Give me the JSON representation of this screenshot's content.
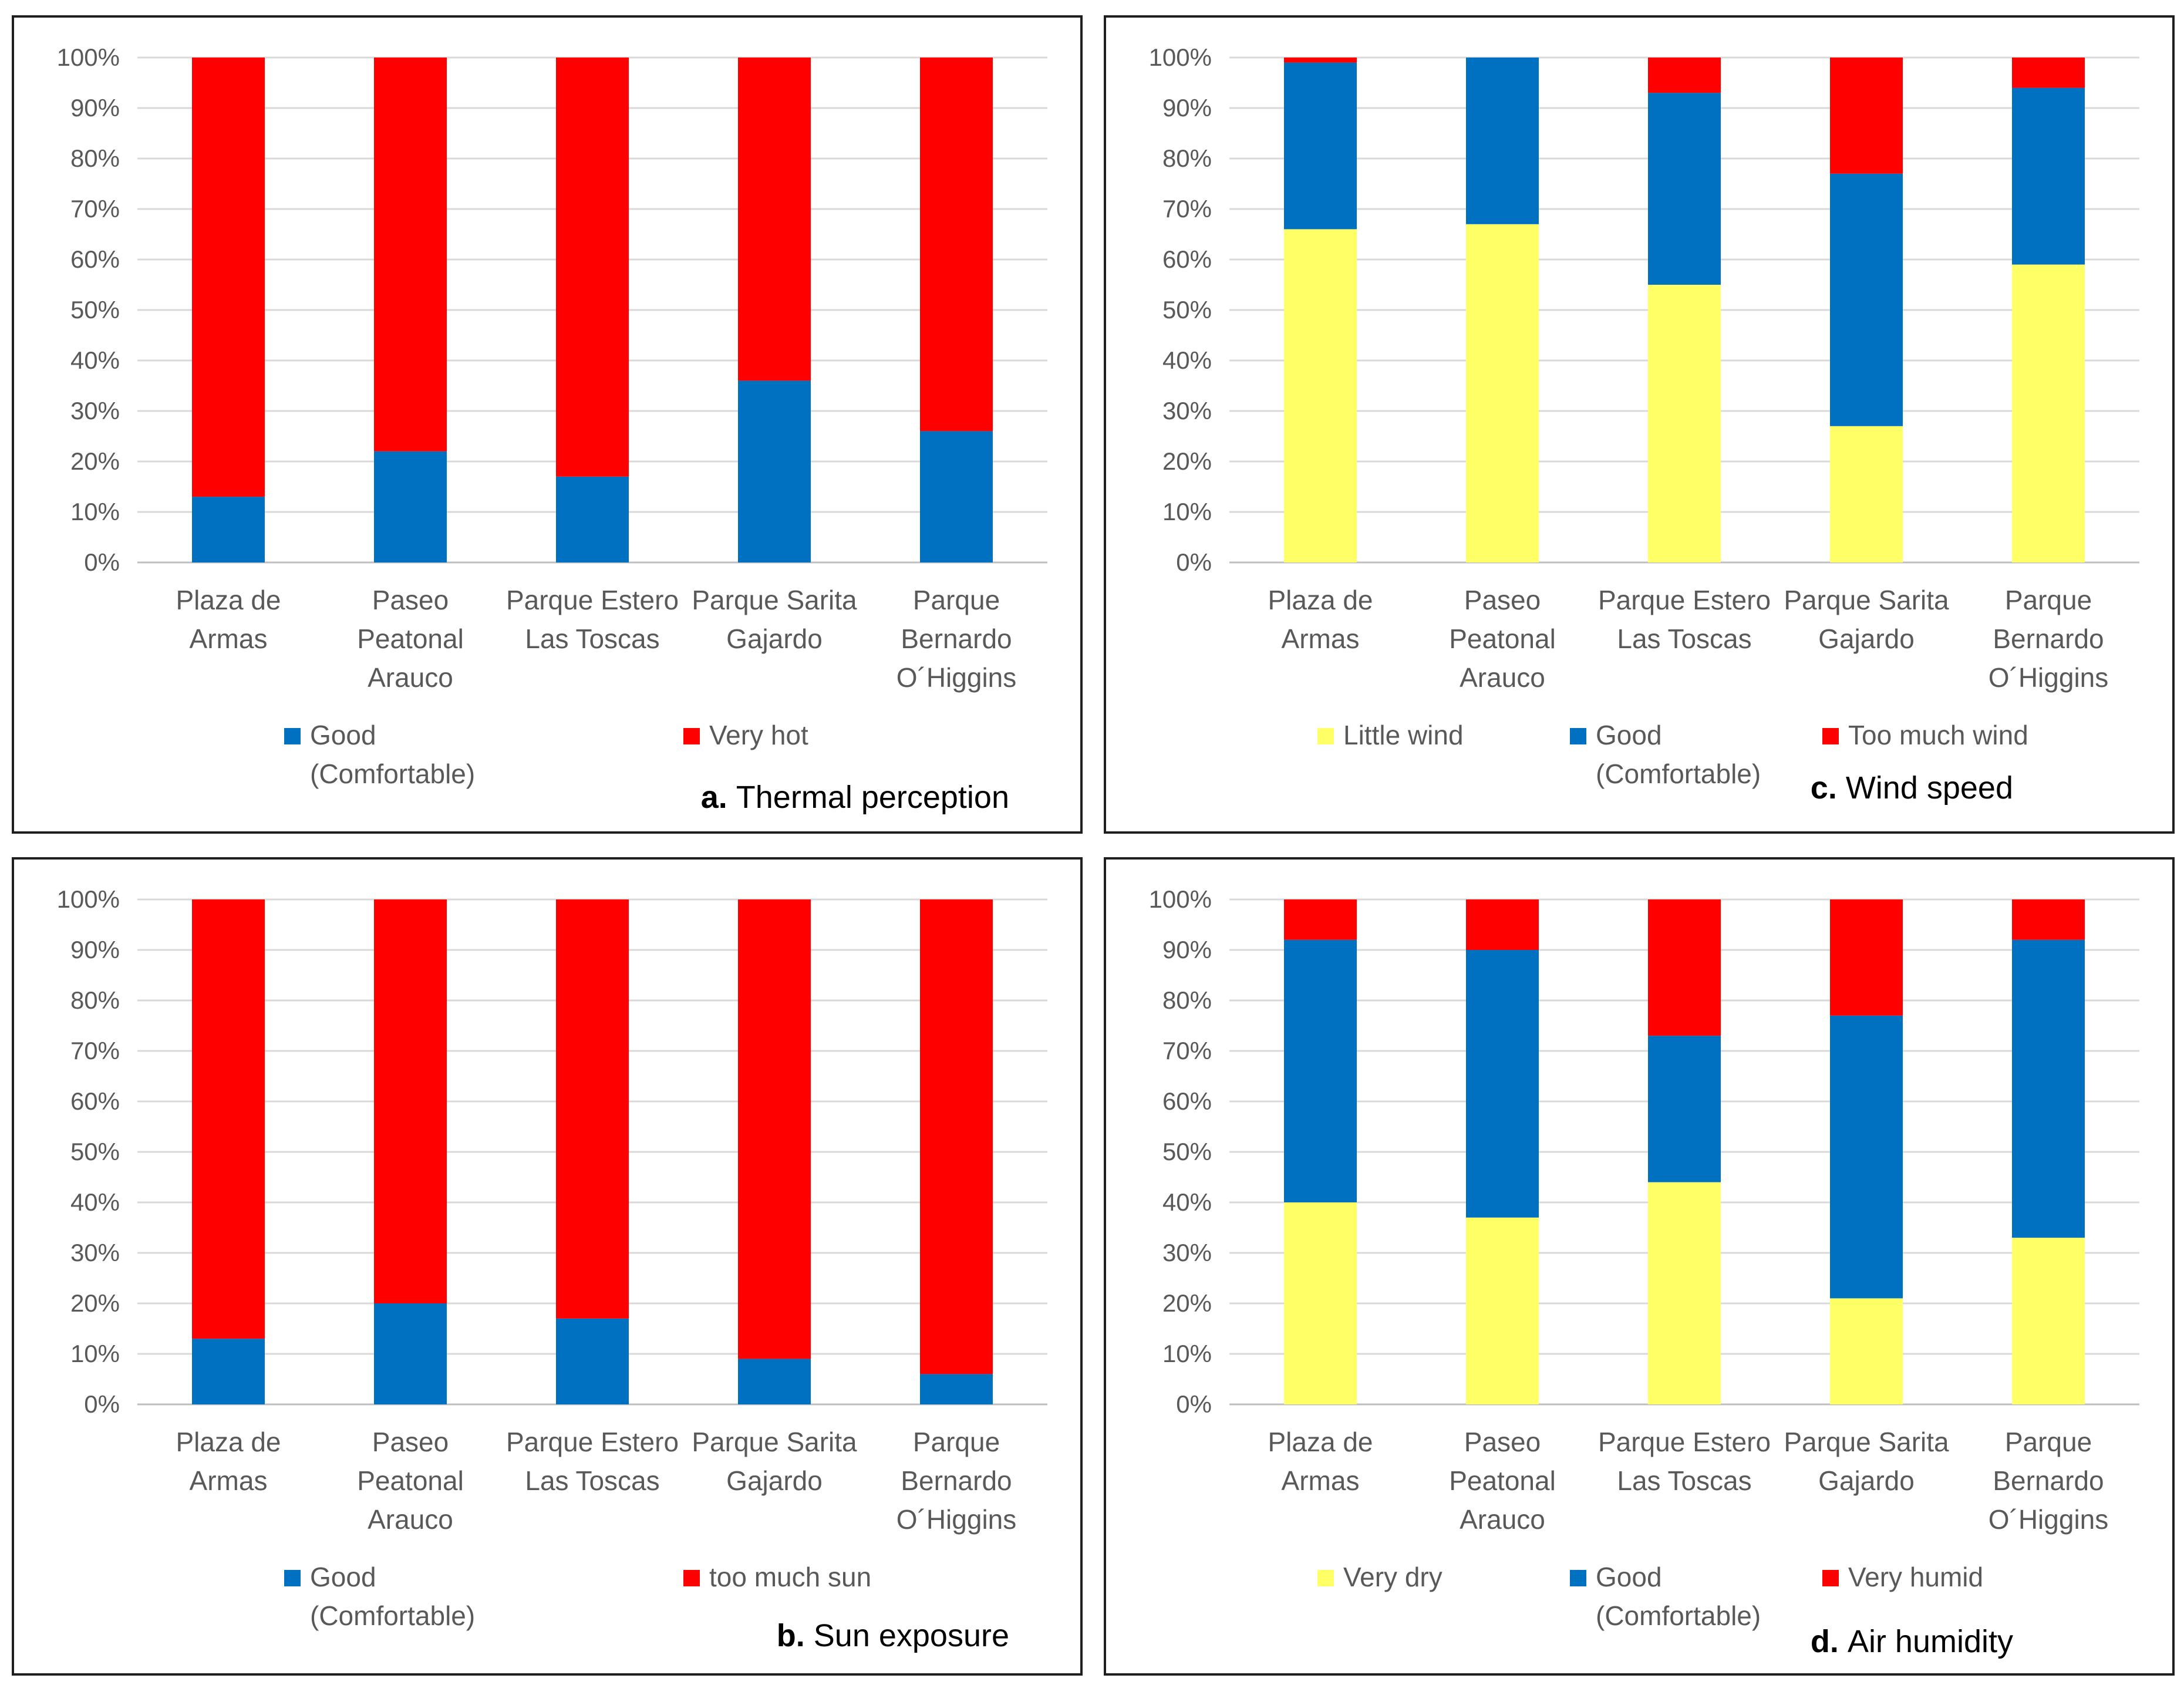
{
  "chart_data": [
    {
      "id": "thermal",
      "type": "bar",
      "stacked": true,
      "caption_letter": "a.",
      "caption_title": "Thermal perception",
      "categories": [
        [
          "Plaza de",
          "Armas"
        ],
        [
          "Paseo",
          "Peatonal",
          "Arauco"
        ],
        [
          "Parque Estero",
          "Las Toscas"
        ],
        [
          "Parque Sarita",
          "Gajardo"
        ],
        [
          "Parque",
          "Bernardo",
          "O´Higgins"
        ]
      ],
      "ylim": [
        0,
        100
      ],
      "yticks": [
        "0%",
        "10%",
        "20%",
        "30%",
        "40%",
        "50%",
        "60%",
        "70%",
        "80%",
        "90%",
        "100%"
      ],
      "series": [
        {
          "name": "Good (Comfortable)",
          "legend_lines": [
            "Good",
            "(Comfortable)"
          ],
          "color": "#0070c0",
          "values": [
            13,
            22,
            17,
            36,
            26
          ]
        },
        {
          "name": "Very hot",
          "legend_lines": [
            "Very hot"
          ],
          "color": "#ff0000",
          "values": [
            87,
            78,
            83,
            64,
            74
          ]
        }
      ]
    },
    {
      "id": "wind",
      "type": "bar",
      "stacked": true,
      "caption_letter": "c.",
      "caption_title": "Wind speed",
      "categories": [
        [
          "Plaza de",
          "Armas"
        ],
        [
          "Paseo",
          "Peatonal",
          "Arauco"
        ],
        [
          "Parque Estero",
          "Las Toscas"
        ],
        [
          "Parque Sarita",
          "Gajardo"
        ],
        [
          "Parque",
          "Bernardo",
          "O´Higgins"
        ]
      ],
      "ylim": [
        0,
        100
      ],
      "yticks": [
        "0%",
        "10%",
        "20%",
        "30%",
        "40%",
        "50%",
        "60%",
        "70%",
        "80%",
        "90%",
        "100%"
      ],
      "series": [
        {
          "name": "Little wind",
          "legend_lines": [
            "Little wind"
          ],
          "color": "#ffff66",
          "values": [
            66,
            67,
            55,
            27,
            59
          ]
        },
        {
          "name": "Good (Comfortable)",
          "legend_lines": [
            "Good",
            "(Comfortable)"
          ],
          "color": "#0070c0",
          "values": [
            33,
            33,
            38,
            50,
            35
          ]
        },
        {
          "name": "Too much wind",
          "legend_lines": [
            "Too much wind"
          ],
          "color": "#ff0000",
          "values": [
            1,
            0,
            7,
            23,
            6
          ]
        }
      ]
    },
    {
      "id": "sun",
      "type": "bar",
      "stacked": true,
      "caption_letter": "b.",
      "caption_title": "Sun exposure",
      "categories": [
        [
          "Plaza de",
          "Armas"
        ],
        [
          "Paseo",
          "Peatonal",
          "Arauco"
        ],
        [
          "Parque Estero",
          "Las Toscas"
        ],
        [
          "Parque Sarita",
          "Gajardo"
        ],
        [
          "Parque",
          "Bernardo",
          "O´Higgins"
        ]
      ],
      "ylim": [
        0,
        100
      ],
      "yticks": [
        "0%",
        "10%",
        "20%",
        "30%",
        "40%",
        "50%",
        "60%",
        "70%",
        "80%",
        "90%",
        "100%"
      ],
      "series": [
        {
          "name": "Good (Comfortable)",
          "legend_lines": [
            "Good",
            "(Comfortable)"
          ],
          "color": "#0070c0",
          "values": [
            13,
            20,
            17,
            9,
            6
          ]
        },
        {
          "name": "too much sun",
          "legend_lines": [
            "too much sun"
          ],
          "color": "#ff0000",
          "values": [
            87,
            80,
            83,
            91,
            94
          ]
        }
      ]
    },
    {
      "id": "humidity",
      "type": "bar",
      "stacked": true,
      "caption_letter": "d.",
      "caption_title": "Air humidity",
      "categories": [
        [
          "Plaza de",
          "Armas"
        ],
        [
          "Paseo",
          "Peatonal",
          "Arauco"
        ],
        [
          "Parque Estero",
          "Las Toscas"
        ],
        [
          "Parque Sarita",
          "Gajardo"
        ],
        [
          "Parque",
          "Bernardo",
          "O´Higgins"
        ]
      ],
      "ylim": [
        0,
        100
      ],
      "yticks": [
        "0%",
        "10%",
        "20%",
        "30%",
        "40%",
        "50%",
        "60%",
        "70%",
        "80%",
        "90%",
        "100%"
      ],
      "series": [
        {
          "name": "Very dry",
          "legend_lines": [
            "Very dry"
          ],
          "color": "#ffff66",
          "values": [
            40,
            37,
            44,
            21,
            33
          ]
        },
        {
          "name": "Good (Comfortable)",
          "legend_lines": [
            "Good",
            "(Comfortable)"
          ],
          "color": "#0070c0",
          "values": [
            52,
            53,
            29,
            56,
            59
          ]
        },
        {
          "name": "Very humid",
          "legend_lines": [
            "Very humid"
          ],
          "color": "#ff0000",
          "values": [
            8,
            10,
            27,
            23,
            8
          ]
        }
      ]
    }
  ]
}
